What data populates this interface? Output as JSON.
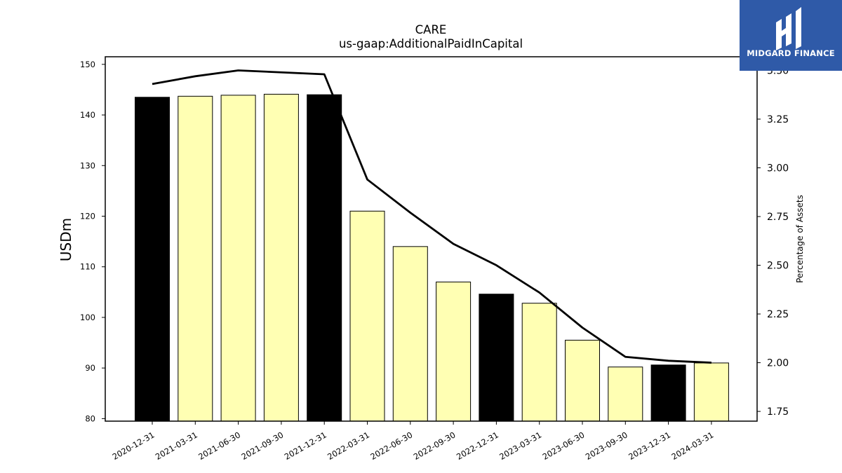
{
  "chart_data": {
    "type": "bar",
    "title": "CARE",
    "subtitle": "us-gaap:AdditionalPaidInCapital",
    "ylabel": "USDm",
    "y2label": "Percentage of Assets",
    "categories": [
      "2020-12-31",
      "2021-03-31",
      "2021-06-30",
      "2021-09-30",
      "2021-12-31",
      "2022-03-31",
      "2022-06-30",
      "2022-09-30",
      "2022-12-31",
      "2023-03-31",
      "2023-06-30",
      "2023-09-30",
      "2023-12-31",
      "2024-03-31"
    ],
    "series": [
      {
        "type": "bar",
        "values": [
          143.5,
          143.7,
          143.9,
          144.1,
          144.0,
          121.0,
          114.0,
          107.0,
          104.6,
          102.8,
          95.5,
          90.2,
          90.6,
          91.0
        ]
      },
      {
        "type": "line",
        "axis": "right",
        "values": [
          3.43,
          3.47,
          3.5,
          3.49,
          3.48,
          2.94,
          2.77,
          2.61,
          2.5,
          2.36,
          2.18,
          2.03,
          2.01,
          2.0
        ]
      }
    ],
    "bar_colors": [
      "#000000",
      "#ffffb3",
      "#ffffb3",
      "#ffffb3",
      "#000000",
      "#ffffb3",
      "#ffffb3",
      "#ffffb3",
      "#000000",
      "#ffffb3",
      "#ffffb3",
      "#ffffb3",
      "#000000",
      "#ffffb3"
    ],
    "ylim": [
      79.5,
      151.5
    ],
    "yticks": [
      80,
      90,
      100,
      110,
      120,
      130,
      140,
      150
    ],
    "y2lim": [
      1.7,
      3.57
    ],
    "y2ticks": [
      1.75,
      2.0,
      2.25,
      2.5,
      2.75,
      3.0,
      3.25,
      3.5
    ],
    "grid": false
  },
  "logo": {
    "text": "MIDGARD FINANCE",
    "background": "#2f5aa8",
    "icon": "midgard-logo-icon"
  }
}
